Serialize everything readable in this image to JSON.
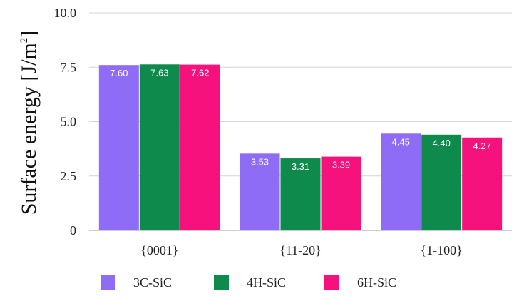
{
  "chart_data": {
    "type": "bar",
    "categories": [
      "{0001}",
      "{11-20}",
      "{1-100}"
    ],
    "series": [
      {
        "name": "3C-SiC",
        "color": "#8f6cf5",
        "values": [
          7.6,
          3.53,
          4.45
        ],
        "labels": [
          "7.60",
          "3.53",
          "4.45"
        ]
      },
      {
        "name": "4H-SiC",
        "color": "#0e8a4c",
        "values": [
          7.63,
          3.31,
          4.4
        ],
        "labels": [
          "7.63",
          "3.31",
          "4.40"
        ]
      },
      {
        "name": "6H-SiC",
        "color": "#f5127d",
        "values": [
          7.62,
          3.39,
          4.27
        ],
        "labels": [
          "7.62",
          "3.39",
          "4.27"
        ]
      }
    ],
    "ylabel": "Surface energy [J/m",
    "ylabel_sup": "2",
    "ylabel_close": "]",
    "ylim": [
      0,
      10
    ],
    "yticks": [
      0,
      2.5,
      5,
      7.5,
      10
    ],
    "ytick_labels": [
      "0",
      "2.5",
      "5.0",
      "7.5",
      "10.0"
    ],
    "grid": true,
    "legend_position": "bottom-left"
  }
}
